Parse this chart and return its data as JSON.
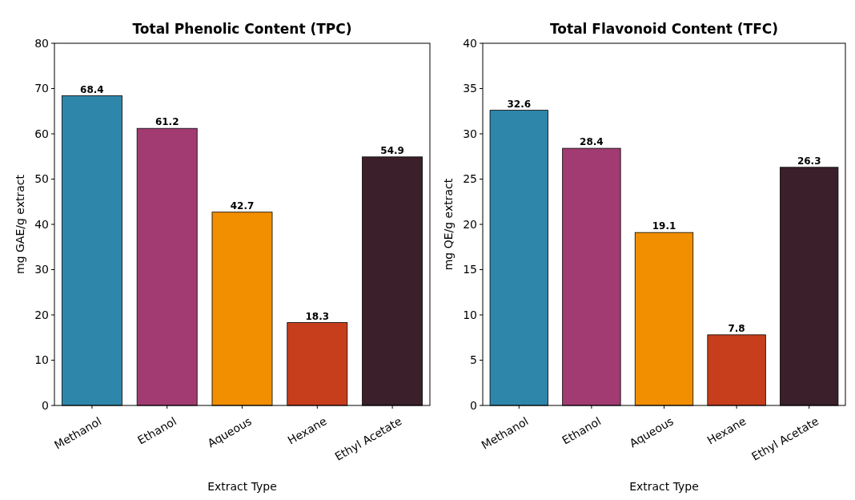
{
  "chart_data": [
    {
      "type": "bar",
      "title": "Total Phenolic Content (TPC)",
      "xlabel": "Extract Type",
      "ylabel": "mg GAE/g extract",
      "categories": [
        "Methanol",
        "Ethanol",
        "Aqueous",
        "Hexane",
        "Ethyl Acetate"
      ],
      "values": [
        68.4,
        61.2,
        42.7,
        18.3,
        54.9
      ],
      "colors": [
        "#2e86ab",
        "#a23b72",
        "#f18f01",
        "#c73e1d",
        "#3b1f2b"
      ],
      "ylim": [
        0,
        80
      ],
      "yticks": [
        0,
        10,
        20,
        30,
        40,
        50,
        60,
        70,
        80
      ],
      "data_labels": true
    },
    {
      "type": "bar",
      "title": "Total Flavonoid Content (TFC)",
      "xlabel": "Extract Type",
      "ylabel": "mg QE/g extract",
      "categories": [
        "Methanol",
        "Ethanol",
        "Aqueous",
        "Hexane",
        "Ethyl Acetate"
      ],
      "values": [
        32.6,
        28.4,
        19.1,
        7.8,
        26.3
      ],
      "colors": [
        "#2e86ab",
        "#a23b72",
        "#f18f01",
        "#c73e1d",
        "#3b1f2b"
      ],
      "ylim": [
        0,
        40
      ],
      "yticks": [
        0,
        5,
        10,
        15,
        20,
        25,
        30,
        35,
        40
      ],
      "data_labels": true
    }
  ]
}
